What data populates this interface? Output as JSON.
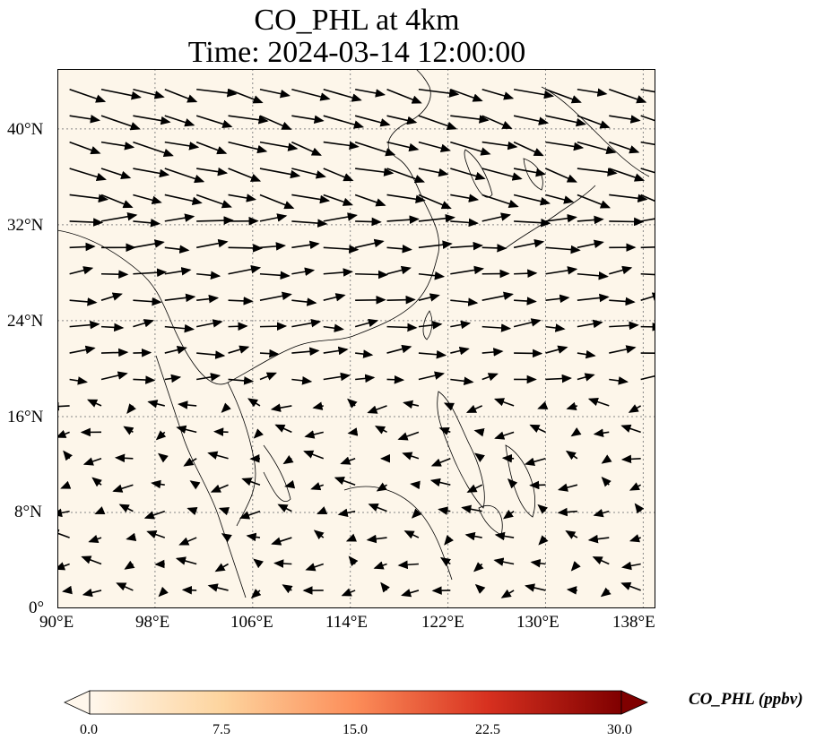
{
  "title": {
    "line1": "CO_PHL at 4km",
    "line2": "Time: 2024-03-14 12:00:00"
  },
  "map": {
    "projection": "PlateCarree",
    "lon_range": [
      90,
      139
    ],
    "lat_range": [
      0,
      45
    ],
    "gridlines": "dotted",
    "field": "CO_PHL",
    "field_level": "near zero everywhere",
    "x_ticks": [
      "90°E",
      "98°E",
      "106°E",
      "114°E",
      "122°E",
      "130°E",
      "138°E"
    ],
    "y_ticks": [
      "0°",
      "8°N",
      "16°N",
      "24°N",
      "32°N",
      "40°N"
    ],
    "wind_vectors": "black arrows, westerly flow north of ~15°N, weak variable flow south",
    "colors": {
      "background_field": "#fdf6ea",
      "coastline": "#000000",
      "arrows": "#000000"
    }
  },
  "colorbar": {
    "label": "CO_PHL (ppbv)",
    "tick_labels": [
      "0.0",
      "7.5",
      "15.0",
      "22.5",
      "30.0"
    ],
    "range": [
      0,
      30
    ],
    "cmap": "OrRd",
    "extend": "both",
    "colors": [
      "#fff7ec",
      "#fdd49e",
      "#fc8d59",
      "#d7301f",
      "#7f0000"
    ]
  }
}
